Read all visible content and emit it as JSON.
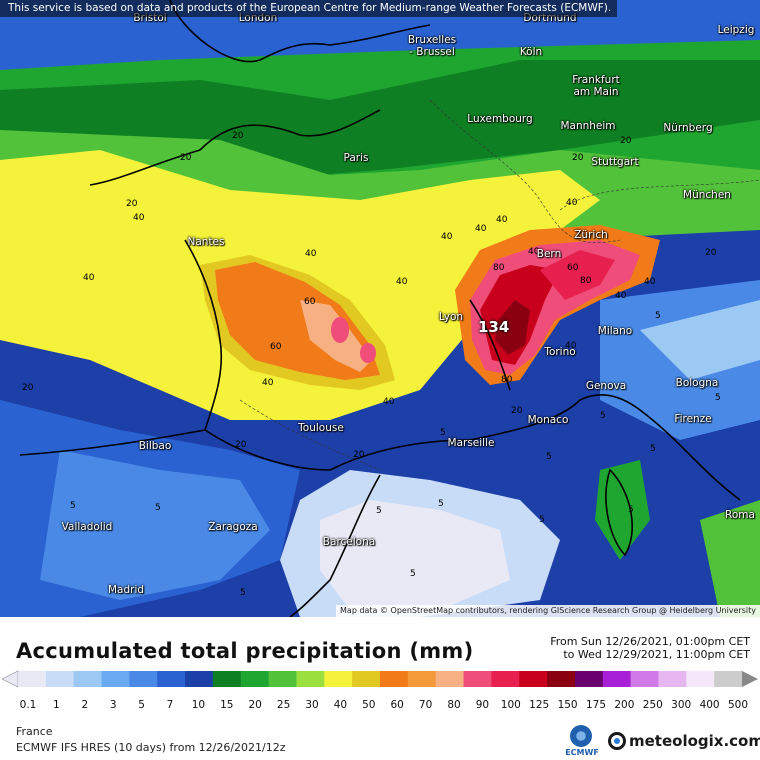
{
  "notice": "This service is based on data and products of the European Centre for Medium-range Weather Forecasts (ECMWF).",
  "attribution": "Map data © OpenStreetMap contributors, rendering GIScience Research Group @ Heidelberg University",
  "peak_value": "134",
  "cities": [
    {
      "id": "bristol",
      "name": "Bristol"
    },
    {
      "id": "london",
      "name": "London"
    },
    {
      "id": "bruxelles",
      "name": "Bruxelles\n- Brussel"
    },
    {
      "id": "dortmund",
      "name": "Dortmund"
    },
    {
      "id": "leipzig",
      "name": "Leipzig"
    },
    {
      "id": "koln",
      "name": "Köln"
    },
    {
      "id": "frankfurt",
      "name": "Frankfurt\nam Main"
    },
    {
      "id": "luxembourg",
      "name": "Luxembourg"
    },
    {
      "id": "mannheim",
      "name": "Mannheim"
    },
    {
      "id": "nurnberg",
      "name": "Nürnberg"
    },
    {
      "id": "paris",
      "name": "Paris"
    },
    {
      "id": "stuttgart",
      "name": "Stuttgart"
    },
    {
      "id": "munchen",
      "name": "München"
    },
    {
      "id": "nantes",
      "name": "Nantes"
    },
    {
      "id": "zurich",
      "name": "Zürich"
    },
    {
      "id": "bern",
      "name": "Bern"
    },
    {
      "id": "lyon",
      "name": "Lyon"
    },
    {
      "id": "milano",
      "name": "Milano"
    },
    {
      "id": "torino",
      "name": "Torino"
    },
    {
      "id": "genova",
      "name": "Genova"
    },
    {
      "id": "bologna",
      "name": "Bologna"
    },
    {
      "id": "toulouse",
      "name": "Toulouse"
    },
    {
      "id": "monaco",
      "name": "Monaco"
    },
    {
      "id": "firenze",
      "name": "Firenze"
    },
    {
      "id": "bilbao",
      "name": "Bilbao"
    },
    {
      "id": "marseille",
      "name": "Marseille"
    },
    {
      "id": "valladolid",
      "name": "Valladolid"
    },
    {
      "id": "zaragoza",
      "name": "Zaragoza"
    },
    {
      "id": "barcelona",
      "name": "Barcelona"
    },
    {
      "id": "roma",
      "name": "Roma"
    },
    {
      "id": "madrid",
      "name": "Madrid"
    }
  ],
  "contour_labels": [
    "20",
    "20",
    "20",
    "20",
    "20",
    "20",
    "20",
    "20",
    "20",
    "20",
    "40",
    "40",
    "40",
    "40",
    "40",
    "40",
    "40",
    "40",
    "40",
    "40",
    "40",
    "60",
    "60",
    "60",
    "80",
    "80",
    "80",
    "40",
    "40",
    "40",
    "5",
    "5",
    "5",
    "5",
    "5",
    "5",
    "5",
    "5",
    "5",
    "5",
    "5",
    "5",
    "5",
    "5"
  ],
  "legend": {
    "title": "Accumulated total precipitation (mm)",
    "date_from": "From Sun 12/26/2021, 01:00pm CET",
    "date_to": "to Wed 12/29/2021, 11:00pm CET",
    "region": "France",
    "model": "ECMWF IFS HRES (10 days) from 12/26/2021/12z",
    "logo_ecmwf": "ECMWF",
    "logo_meteologix": "meteologix.com",
    "scale": [
      {
        "label": "0.1",
        "color": "#e9e9f5"
      },
      {
        "label": "1",
        "color": "#c8dcf8"
      },
      {
        "label": "2",
        "color": "#9cc8f4"
      },
      {
        "label": "3",
        "color": "#6aaaf0"
      },
      {
        "label": "5",
        "color": "#4a8ae6"
      },
      {
        "label": "7",
        "color": "#2a63d1"
      },
      {
        "label": "10",
        "color": "#1c3fa8"
      },
      {
        "label": "15",
        "color": "#0f7f23"
      },
      {
        "label": "20",
        "color": "#1fa630"
      },
      {
        "label": "25",
        "color": "#52c23a"
      },
      {
        "label": "30",
        "color": "#9ce040"
      },
      {
        "label": "40",
        "color": "#f4f23a"
      },
      {
        "label": "50",
        "color": "#e2c922"
      },
      {
        "label": "60",
        "color": "#f07b18"
      },
      {
        "label": "70",
        "color": "#f59a3a"
      },
      {
        "label": "80",
        "color": "#f7b081"
      },
      {
        "label": "90",
        "color": "#f04e7a"
      },
      {
        "label": "100",
        "color": "#e8204f"
      },
      {
        "label": "125",
        "color": "#c8001c"
      },
      {
        "label": "150",
        "color": "#8a0010"
      },
      {
        "label": "175",
        "color": "#6a006e"
      },
      {
        "label": "200",
        "color": "#a81fd8"
      },
      {
        "label": "250",
        "color": "#d07ae8"
      },
      {
        "label": "300",
        "color": "#e6b6f0"
      },
      {
        "label": "400",
        "color": "#f5e6fa"
      },
      {
        "label": "500",
        "color": "#cccccc"
      }
    ]
  },
  "colors": {
    "sea": "#1c3fa8",
    "land_dry": "#e9e9f5"
  }
}
